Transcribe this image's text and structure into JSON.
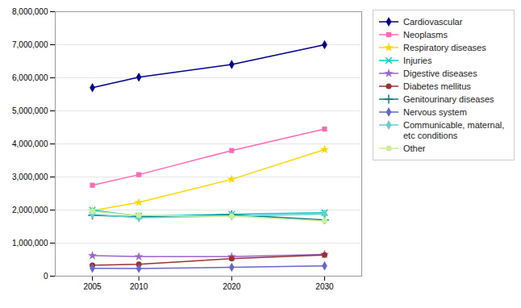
{
  "chart_data": {
    "type": "line",
    "x": [
      2005,
      2010,
      2020,
      2030
    ],
    "xlim": [
      2001,
      2034
    ],
    "xticks": [
      2005,
      2010,
      2020,
      2030
    ],
    "ylim": [
      0,
      8000000
    ],
    "yticks": [
      0,
      {
        "value": 1000000,
        "label": "1,000,000"
      },
      {
        "value": 2000000,
        "label": "2,000,000"
      },
      {
        "value": 3000000,
        "label": "3,000,000"
      },
      {
        "value": 4000000,
        "label": "4,000,000"
      },
      {
        "value": 5000000,
        "label": "5,000,000"
      },
      {
        "value": 6000000,
        "label": "6,000,000"
      },
      {
        "value": 7000000,
        "label": "7,000,000"
      },
      {
        "value": 8000000,
        "label": "8,000,000"
      }
    ],
    "grid": true,
    "legend": "right",
    "series": [
      {
        "name": "Cardiovascular",
        "color": "#00008B",
        "marker": "diamond",
        "values": [
          5700000,
          6020000,
          6400000,
          7000000
        ]
      },
      {
        "name": "Neoplasms",
        "color": "#FF69B4",
        "marker": "square",
        "values": [
          2750000,
          3070000,
          3800000,
          4450000
        ]
      },
      {
        "name": "Respiratory diseases",
        "color": "#FFD700",
        "marker": "star",
        "values": [
          1980000,
          2230000,
          2930000,
          3830000
        ]
      },
      {
        "name": "Injuries",
        "color": "#00CCCC",
        "marker": "x",
        "values": [
          2000000,
          1820000,
          1870000,
          1920000
        ]
      },
      {
        "name": "Digestive diseases",
        "color": "#9966CC",
        "marker": "star",
        "values": [
          620000,
          590000,
          590000,
          660000
        ]
      },
      {
        "name": "Diabetes mellitus",
        "color": "#993333",
        "marker": "circle",
        "values": [
          330000,
          360000,
          530000,
          640000
        ]
      },
      {
        "name": "Genitourinary diseases",
        "color": "#008080",
        "marker": "plus",
        "values": [
          1840000,
          1790000,
          1860000,
          1700000
        ]
      },
      {
        "name": "Nervous system",
        "color": "#6666CC",
        "marker": "diamond",
        "values": [
          240000,
          230000,
          270000,
          310000
        ]
      },
      {
        "name": "Communicable, maternal,\netc conditions",
        "color": "#66CCCC",
        "marker": "diamond",
        "values": [
          1870000,
          1770000,
          1820000,
          1880000
        ]
      },
      {
        "name": "Other",
        "color": "#CCEE99",
        "marker": "circle",
        "values": [
          1960000,
          1840000,
          1810000,
          1670000
        ]
      }
    ]
  }
}
